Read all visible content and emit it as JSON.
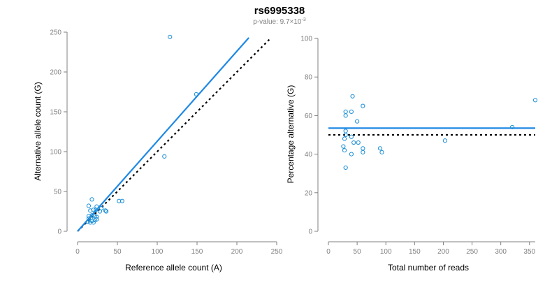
{
  "title": "rs6995338",
  "subtitle": {
    "prefix": "p-value: 9.7×10",
    "exponent": "-3"
  },
  "colors": {
    "point": "#1a8fd8",
    "fit_line": "#1e88e5",
    "reference_line": "#000000",
    "axis": "#808080"
  },
  "chart_data": [
    {
      "type": "scatter",
      "xlabel": "Reference allele count (A)",
      "ylabel": "Alternative allele count (G)",
      "xlim": [
        0,
        250
      ],
      "ylim": [
        0,
        250
      ],
      "xticks": [
        "0",
        "50",
        "100",
        "150",
        "200",
        "250"
      ],
      "yticks": [
        "0",
        "50",
        "100",
        "150",
        "200",
        "250"
      ],
      "grid": false,
      "points": [
        [
          116,
          244
        ],
        [
          149,
          172
        ],
        [
          109,
          94
        ],
        [
          56,
          38
        ],
        [
          52,
          38
        ],
        [
          18,
          40
        ],
        [
          14,
          32
        ],
        [
          24,
          31
        ],
        [
          20,
          27
        ],
        [
          23,
          27
        ],
        [
          30,
          29
        ],
        [
          35,
          26
        ],
        [
          36,
          25
        ],
        [
          28,
          25
        ],
        [
          16,
          26
        ],
        [
          14,
          19
        ],
        [
          18,
          20
        ],
        [
          22,
          19
        ],
        [
          17,
          17
        ],
        [
          24,
          18
        ],
        [
          24,
          15
        ],
        [
          14,
          16
        ],
        [
          13,
          12
        ],
        [
          16,
          11
        ],
        [
          18,
          13
        ],
        [
          20,
          11
        ],
        [
          22,
          14
        ]
      ],
      "fit_line": [
        [
          0,
          0
        ],
        [
          215,
          243
        ]
      ],
      "reference_line": [
        [
          0,
          0
        ],
        [
          243,
          243
        ]
      ]
    },
    {
      "type": "scatter",
      "xlabel": "Total number of reads",
      "ylabel": "Percentage alternative (G)",
      "xlim": [
        0,
        360
      ],
      "ylim": [
        0,
        100
      ],
      "xticks": [
        "0",
        "50",
        "100",
        "150",
        "200",
        "250",
        "300",
        "350"
      ],
      "yticks": [
        "0",
        "20",
        "40",
        "60",
        "80",
        "100"
      ],
      "grid": false,
      "points": [
        [
          360,
          68
        ],
        [
          320,
          54
        ],
        [
          203,
          47
        ],
        [
          42,
          70
        ],
        [
          60,
          65
        ],
        [
          30,
          62
        ],
        [
          30,
          60
        ],
        [
          40,
          62
        ],
        [
          50,
          57
        ],
        [
          30,
          52
        ],
        [
          30,
          50
        ],
        [
          28,
          48
        ],
        [
          40,
          49
        ],
        [
          44,
          46
        ],
        [
          52,
          46
        ],
        [
          26,
          44
        ],
        [
          28,
          42
        ],
        [
          60,
          43
        ],
        [
          60,
          41
        ],
        [
          90,
          43
        ],
        [
          93,
          41
        ],
        [
          40,
          40
        ],
        [
          30,
          33
        ]
      ],
      "fit_line": [
        [
          0,
          53.5
        ],
        [
          360,
          53.5
        ]
      ],
      "reference_line": [
        [
          0,
          50
        ],
        [
          360,
          50
        ]
      ]
    }
  ]
}
